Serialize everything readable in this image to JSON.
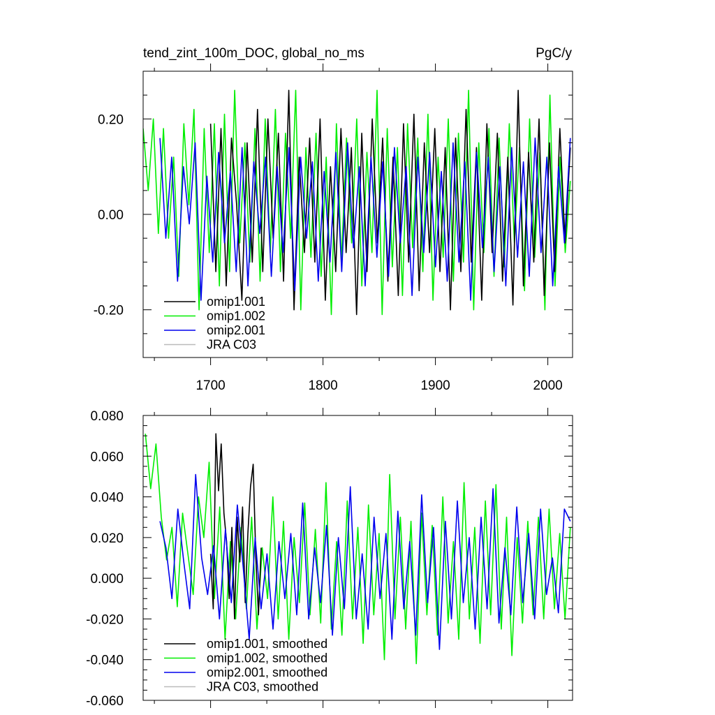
{
  "chart_data": [
    {
      "type": "line",
      "title": "tend_zint_100m_DOC, global_no_ms",
      "units": "PgC/y",
      "xlim": [
        1640,
        2022
      ],
      "ylim": [
        -0.3,
        0.3
      ],
      "x_ticks": [
        1700,
        1800,
        1900,
        2000
      ],
      "x_tick_labels": [
        "1700",
        "1800",
        "1900",
        "2000"
      ],
      "y_ticks": [
        0.2,
        0.0,
        -0.2
      ],
      "y_tick_labels": [
        "0.20",
        "0.00",
        "-0.20"
      ],
      "legend_position": "bottom-left",
      "legend": [
        "omip1.001",
        "omip1.002",
        "omip2.001",
        "JRA C03"
      ],
      "series": [
        {
          "name": "omip1.001",
          "color": "#000000",
          "x_start": 1700,
          "x_end": 2020,
          "values": [
            0.19,
            -0.12,
            0.18,
            -0.15,
            0.16,
            0.02,
            -0.18,
            0.15,
            -0.1,
            0.22,
            -0.12,
            0.2,
            -0.05,
            0.17,
            -0.14,
            0.26,
            -0.2,
            0.12,
            -0.08,
            0.16,
            -0.1,
            0.2,
            -0.18,
            0.1,
            -0.12,
            0.18,
            -0.08,
            0.14,
            -0.21,
            0.17,
            -0.12,
            0.2,
            -0.06,
            0.16,
            -0.14,
            0.12,
            -0.17,
            0.19,
            -0.1,
            0.21,
            -0.16,
            0.15,
            -0.08,
            0.18,
            -0.12,
            0.14,
            -0.2,
            0.16,
            -0.12,
            0.22,
            -0.1,
            0.14,
            -0.18,
            0.19,
            -0.08,
            0.17,
            -0.14,
            0.12,
            -0.19,
            0.26,
            -0.15,
            0.13,
            -0.1,
            0.2,
            -0.17,
            0.15,
            -0.12,
            0.18,
            -0.06,
            0.14
          ]
        },
        {
          "name": "omip1.002",
          "color": "#00ee00",
          "x_start": 1640,
          "x_end": 2020,
          "values": [
            0.18,
            0.05,
            0.2,
            -0.04,
            0.18,
            -0.05,
            0.12,
            -0.13,
            0.19,
            0.02,
            0.22,
            -0.2,
            0.18,
            -0.08,
            0.19,
            -0.15,
            0.21,
            -0.12,
            0.26,
            -0.06,
            0.15,
            -0.1,
            0.18,
            -0.14,
            0.2,
            -0.08,
            0.22,
            -0.12,
            0.17,
            -0.05,
            0.26,
            -0.2,
            0.14,
            -0.09,
            0.17,
            -0.13,
            0.12,
            -0.21,
            0.19,
            -0.1,
            0.16,
            -0.06,
            0.2,
            -0.15,
            0.13,
            -0.08,
            0.26,
            -0.21,
            0.18,
            -0.11,
            0.14,
            -0.17,
            0.19,
            -0.07,
            0.16,
            -0.12,
            0.21,
            -0.18,
            0.12,
            -0.09,
            0.2,
            -0.14,
            0.17,
            -0.1,
            0.26,
            -0.2,
            0.15,
            -0.08,
            0.18,
            -0.13,
            0.16,
            -0.11,
            0.19,
            -0.06,
            0.14,
            -0.16,
            0.2,
            -0.09,
            0.13,
            -0.2,
            0.25,
            -0.15,
            0.12,
            -0.08,
            0.07
          ]
        },
        {
          "name": "omip2.001",
          "color": "#0000ee",
          "x_start": 1655,
          "x_end": 2020,
          "values": [
            0.16,
            -0.05,
            0.12,
            -0.14,
            0.1,
            -0.02,
            0.15,
            -0.18,
            0.08,
            -0.1,
            0.13,
            -0.06,
            0.09,
            -0.12,
            0.14,
            -0.15,
            0.11,
            -0.04,
            0.12,
            -0.13,
            0.1,
            -0.08,
            0.14,
            -0.16,
            0.12,
            -0.05,
            0.11,
            -0.14,
            0.09,
            -0.1,
            0.13,
            -0.12,
            0.15,
            -0.07,
            0.1,
            -0.15,
            0.12,
            -0.09,
            0.11,
            -0.13,
            0.14,
            -0.06,
            0.1,
            -0.17,
            0.12,
            -0.08,
            0.13,
            -0.11,
            0.09,
            -0.14,
            0.15,
            -0.1,
            0.11,
            -0.18,
            0.13,
            -0.07,
            0.12,
            -0.12,
            0.1,
            -0.15,
            0.14,
            -0.09,
            0.11,
            -0.13,
            0.16,
            -0.08,
            0.12,
            -0.15,
            0.1,
            -0.06,
            0.16
          ]
        },
        {
          "name": "JRA C03",
          "color": "#bbbbbb",
          "values": []
        }
      ]
    },
    {
      "type": "line",
      "title": "",
      "xlim": [
        1640,
        2022
      ],
      "ylim": [
        -0.06,
        0.08
      ],
      "x_ticks": [
        1700,
        1800,
        1900,
        2000
      ],
      "y_ticks": [
        0.08,
        0.06,
        0.04,
        0.02,
        0.0,
        -0.02,
        -0.04,
        -0.06
      ],
      "y_tick_labels": [
        "0.080",
        "0.060",
        "0.040",
        "0.020",
        "0.000",
        "-0.020",
        "-0.040",
        "-0.060"
      ],
      "legend_position": "bottom-left",
      "legend": [
        "omip1.001, smoothed",
        "omip1.002, smoothed",
        "omip2.001, smoothed",
        "JRA C03, smoothed"
      ],
      "series": [
        {
          "name": "omip1.001, smoothed",
          "color": "#000000",
          "x_start": 1700,
          "x_end": 1745,
          "values": [
            0.012,
            -0.015,
            0.071,
            0.043,
            0.066,
            0.032,
            0.018,
            -0.01,
            0.025,
            -0.02,
            0.03,
            0.008,
            0.035,
            -0.012,
            0.022,
            0.045,
            0.056,
            0.01,
            -0.018,
            0.015
          ]
        },
        {
          "name": "omip1.002, smoothed",
          "color": "#00ee00",
          "x_start": 1642,
          "x_end": 2020,
          "values": [
            0.071,
            0.044,
            0.066,
            0.03,
            0.009,
            0.025,
            -0.014,
            0.032,
            0.012,
            -0.008,
            0.04,
            0.02,
            0.057,
            -0.01,
            0.035,
            -0.03,
            0.018,
            -0.02,
            0.025,
            -0.015,
            0.03,
            -0.025,
            0.015,
            -0.01,
            0.04,
            -0.02,
            0.028,
            -0.03,
            0.02,
            -0.012,
            0.037,
            -0.018,
            0.024,
            -0.022,
            0.047,
            -0.025,
            0.018,
            -0.028,
            0.038,
            -0.02,
            0.025,
            -0.032,
            0.036,
            -0.018,
            0.022,
            -0.04,
            0.051,
            -0.02,
            0.03,
            -0.025,
            0.028,
            -0.042,
            0.032,
            -0.018,
            0.026,
            -0.028,
            0.04,
            -0.022,
            0.018,
            -0.03,
            0.047,
            -0.02,
            0.025,
            -0.032,
            0.038,
            -0.018,
            0.046,
            -0.025,
            0.03,
            -0.038,
            0.02,
            -0.022,
            0.028,
            -0.018,
            0.03,
            -0.02,
            0.034,
            -0.015,
            0.022,
            -0.02,
            0.025
          ]
        },
        {
          "name": "omip2.001, smoothed",
          "color": "#0000ee",
          "x_start": 1655,
          "x_end": 2020,
          "values": [
            0.028,
            0.015,
            -0.01,
            0.034,
            0.008,
            -0.015,
            0.051,
            0.01,
            -0.008,
            0.016,
            -0.02,
            0.024,
            -0.012,
            0.036,
            0.005,
            -0.03,
            0.02,
            -0.015,
            0.012,
            -0.025,
            0.018,
            -0.01,
            0.022,
            -0.018,
            0.037,
            -0.02,
            0.015,
            -0.012,
            0.026,
            -0.028,
            0.02,
            -0.015,
            0.045,
            -0.02,
            0.012,
            -0.025,
            0.03,
            -0.01,
            0.022,
            -0.03,
            0.033,
            -0.015,
            0.018,
            -0.028,
            0.041,
            -0.012,
            0.025,
            -0.035,
            0.028,
            -0.02,
            0.038,
            -0.012,
            0.02,
            -0.025,
            0.03,
            -0.015,
            0.044,
            -0.022,
            0.015,
            -0.018,
            0.035,
            -0.012,
            0.022,
            -0.02,
            0.034,
            -0.008,
            0.01,
            -0.017,
            0.034,
            0.028
          ]
        },
        {
          "name": "JRA C03, smoothed",
          "color": "#bbbbbb",
          "values": []
        }
      ]
    }
  ]
}
